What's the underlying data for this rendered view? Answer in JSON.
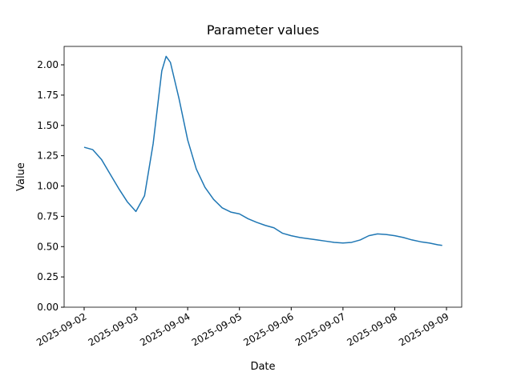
{
  "chart_data": {
    "type": "line",
    "title": "Parameter values",
    "x_label": "Date",
    "y_label": "Value",
    "x": [
      "2025-09-02T00:00",
      "2025-09-02T04:00",
      "2025-09-02T08:00",
      "2025-09-02T12:00",
      "2025-09-02T16:00",
      "2025-09-02T20:00",
      "2025-09-03T00:00",
      "2025-09-03T04:00",
      "2025-09-03T08:00",
      "2025-09-03T12:00",
      "2025-09-03T14:00",
      "2025-09-03T16:00",
      "2025-09-03T20:00",
      "2025-09-04T00:00",
      "2025-09-04T04:00",
      "2025-09-04T08:00",
      "2025-09-04T12:00",
      "2025-09-04T16:00",
      "2025-09-04T20:00",
      "2025-09-05T00:00",
      "2025-09-05T04:00",
      "2025-09-05T08:00",
      "2025-09-05T12:00",
      "2025-09-05T16:00",
      "2025-09-05T20:00",
      "2025-09-06T00:00",
      "2025-09-06T04:00",
      "2025-09-06T08:00",
      "2025-09-06T12:00",
      "2025-09-06T16:00",
      "2025-09-06T20:00",
      "2025-09-07T00:00",
      "2025-09-07T04:00",
      "2025-09-07T08:00",
      "2025-09-07T12:00",
      "2025-09-07T16:00",
      "2025-09-07T20:00",
      "2025-09-08T00:00",
      "2025-09-08T04:00",
      "2025-09-08T08:00",
      "2025-09-08T12:00",
      "2025-09-08T16:00",
      "2025-09-08T20:00",
      "2025-09-08T22:00"
    ],
    "series": [
      {
        "name": "Value",
        "color": "#1f77b4",
        "values": [
          1.32,
          1.3,
          1.22,
          1.1,
          0.98,
          0.87,
          0.79,
          0.92,
          1.35,
          1.95,
          2.07,
          2.02,
          1.72,
          1.38,
          1.14,
          0.99,
          0.89,
          0.82,
          0.785,
          0.77,
          0.73,
          0.7,
          0.675,
          0.655,
          0.61,
          0.59,
          0.575,
          0.565,
          0.555,
          0.545,
          0.535,
          0.53,
          0.535,
          0.555,
          0.59,
          0.605,
          0.6,
          0.59,
          0.575,
          0.555,
          0.54,
          0.53,
          0.515,
          0.51
        ]
      }
    ],
    "xlim": [
      "2025-09-01T14:43",
      "2025-09-09T07:03"
    ],
    "xticks": [
      "2025-09-02",
      "2025-09-03",
      "2025-09-04",
      "2025-09-05",
      "2025-09-06",
      "2025-09-07",
      "2025-09-08",
      "2025-09-09"
    ],
    "ylim": [
      0,
      2.152
    ],
    "yticks": [
      {
        "value": 0,
        "label": "0.00"
      },
      {
        "value": 0.25,
        "label": "0.25"
      },
      {
        "value": 0.5,
        "label": "0.50"
      },
      {
        "value": 0.75,
        "label": "0.75"
      },
      {
        "value": 1,
        "label": "1.00"
      },
      {
        "value": 1.25,
        "label": "1.25"
      },
      {
        "value": 1.5,
        "label": "1.50"
      },
      {
        "value": 1.75,
        "label": "1.75"
      },
      {
        "value": 2,
        "label": "2.00"
      }
    ],
    "grid": false
  }
}
